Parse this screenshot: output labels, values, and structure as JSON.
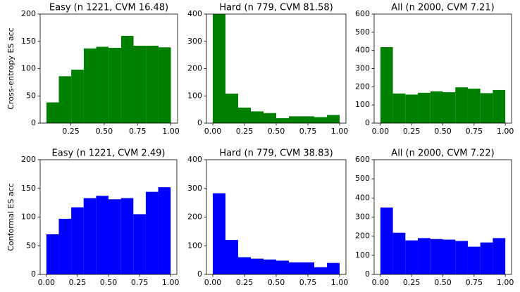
{
  "chart_data": [
    {
      "type": "histogram",
      "title": "Easy (n 1221, CVM 16.48)",
      "ylabel": "Cross-entropy ES acc",
      "color": "#008000",
      "bins": [
        0.067,
        0.16,
        0.253,
        0.347,
        0.44,
        0.533,
        0.627,
        0.72,
        0.813,
        0.907,
        1.0
      ],
      "values": [
        38,
        86,
        98,
        137,
        140,
        138,
        160,
        142,
        142,
        139
      ],
      "xlim": [
        0.02,
        1.05
      ],
      "xticks": [
        {
          "value": 0.25,
          "label": "0.25"
        },
        {
          "value": 0.5,
          "label": "0.50"
        },
        {
          "value": 0.75,
          "label": "0.75"
        },
        {
          "value": 1.0,
          "label": "1.00"
        }
      ],
      "ylim": [
        0,
        200
      ],
      "yticks": [
        0,
        50,
        100,
        150,
        200
      ]
    },
    {
      "type": "histogram",
      "title": "Hard (n 779, CVM 81.58)",
      "color": "#008000",
      "bins": [
        0,
        0.1,
        0.2,
        0.3,
        0.4,
        0.5,
        0.6,
        0.7,
        0.8,
        0.9,
        1.0
      ],
      "values": [
        400,
        108,
        57,
        43,
        37,
        18,
        25,
        25,
        22,
        30
      ],
      "xlim": [
        -0.05,
        1.05
      ],
      "xticks": [
        {
          "value": 0,
          "label": "0.00"
        },
        {
          "value": 0.25,
          "label": "0.25"
        },
        {
          "value": 0.5,
          "label": "0.50"
        },
        {
          "value": 0.75,
          "label": "0.75"
        },
        {
          "value": 1.0,
          "label": "1.00"
        }
      ],
      "ylim": [
        0,
        400
      ],
      "yticks": [
        0,
        100,
        200,
        300,
        400
      ]
    },
    {
      "type": "histogram",
      "title": "All (n 2000, CVM 7.21)",
      "color": "#008000",
      "bins": [
        0,
        0.1,
        0.2,
        0.3,
        0.4,
        0.5,
        0.6,
        0.7,
        0.8,
        0.9,
        1.0
      ],
      "values": [
        418,
        163,
        157,
        167,
        175,
        170,
        197,
        190,
        165,
        182
      ],
      "xlim": [
        -0.05,
        1.05
      ],
      "xticks": [
        {
          "value": 0,
          "label": "0.00"
        },
        {
          "value": 0.25,
          "label": "0.25"
        },
        {
          "value": 0.5,
          "label": "0.50"
        },
        {
          "value": 0.75,
          "label": "0.75"
        },
        {
          "value": 1.0,
          "label": "1.00"
        }
      ],
      "ylim": [
        0,
        600
      ],
      "yticks": [
        0,
        100,
        200,
        300,
        400,
        500,
        600
      ]
    },
    {
      "type": "histogram",
      "title": "Easy (n 1221, CVM 2.49)",
      "ylabel": "Conformal ES acc",
      "color": "#0000ff",
      "bins": [
        0,
        0.1,
        0.2,
        0.3,
        0.4,
        0.5,
        0.6,
        0.7,
        0.8,
        0.9,
        1.0
      ],
      "values": [
        70,
        97,
        117,
        133,
        137,
        131,
        133,
        105,
        144,
        152
      ],
      "xlim": [
        -0.05,
        1.05
      ],
      "xticks": [
        {
          "value": 0,
          "label": "0.00"
        },
        {
          "value": 0.25,
          "label": "0.25"
        },
        {
          "value": 0.5,
          "label": "0.50"
        },
        {
          "value": 0.75,
          "label": "0.75"
        },
        {
          "value": 1.0,
          "label": "1.00"
        }
      ],
      "ylim": [
        0,
        200
      ],
      "yticks": [
        0,
        50,
        100,
        150,
        200
      ]
    },
    {
      "type": "histogram",
      "title": "Hard (n 779, CVM 38.83)",
      "color": "#0000ff",
      "bins": [
        0,
        0.1,
        0.2,
        0.3,
        0.4,
        0.5,
        0.6,
        0.7,
        0.8,
        0.9,
        1.0
      ],
      "values": [
        283,
        120,
        60,
        55,
        52,
        48,
        42,
        42,
        25,
        40
      ],
      "xlim": [
        -0.05,
        1.05
      ],
      "xticks": [
        {
          "value": 0,
          "label": "0.00"
        },
        {
          "value": 0.25,
          "label": "0.25"
        },
        {
          "value": 0.5,
          "label": "0.50"
        },
        {
          "value": 0.75,
          "label": "0.75"
        },
        {
          "value": 1.0,
          "label": "1.00"
        }
      ],
      "ylim": [
        0,
        400
      ],
      "yticks": [
        0,
        100,
        200,
        300,
        400
      ]
    },
    {
      "type": "histogram",
      "title": "All (n 2000, CVM 7.22)",
      "color": "#0000ff",
      "bins": [
        0,
        0.1,
        0.2,
        0.3,
        0.4,
        0.5,
        0.6,
        0.7,
        0.8,
        0.9,
        1.0
      ],
      "values": [
        350,
        218,
        178,
        190,
        185,
        182,
        175,
        145,
        167,
        190
      ],
      "xlim": [
        -0.05,
        1.05
      ],
      "xticks": [
        {
          "value": 0,
          "label": "0.00"
        },
        {
          "value": 0.25,
          "label": "0.25"
        },
        {
          "value": 0.5,
          "label": "0.50"
        },
        {
          "value": 0.75,
          "label": "0.75"
        },
        {
          "value": 1.0,
          "label": "1.00"
        }
      ],
      "ylim": [
        0,
        600
      ],
      "yticks": [
        0,
        100,
        200,
        300,
        400,
        500,
        600
      ]
    }
  ]
}
